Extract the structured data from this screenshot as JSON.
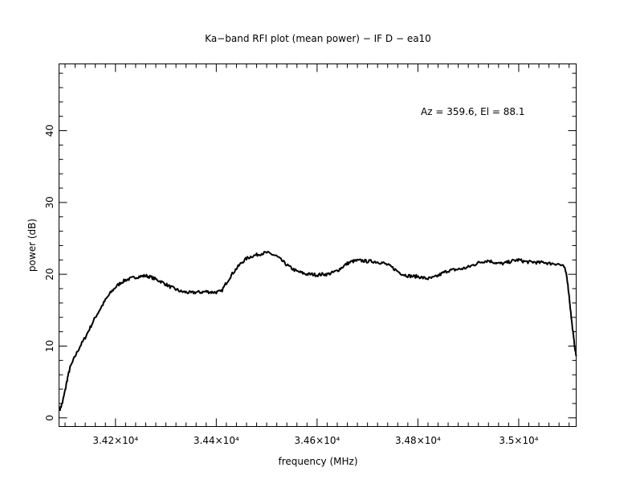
{
  "chart_data": {
    "type": "line",
    "title": "Ka−band RFI plot (mean power) − IF D − ea10",
    "xlabel": "frequency (MHz)",
    "ylabel": "power (dB)",
    "annotation": "Az = 359.6, El = 88.1",
    "xlim": [
      34088,
      35114
    ],
    "ylim": [
      -1.2,
      49.3
    ],
    "x_ticks": [
      {
        "value": 34200,
        "label": "3.42×10⁴"
      },
      {
        "value": 34400,
        "label": "3.44×10⁴"
      },
      {
        "value": 34600,
        "label": "3.46×10⁴"
      },
      {
        "value": 34800,
        "label": "3.48×10⁴"
      },
      {
        "value": 35000,
        "label": "3.5×10⁴"
      }
    ],
    "y_ticks": [
      {
        "value": 0,
        "label": "0"
      },
      {
        "value": 10,
        "label": "10"
      },
      {
        "value": 20,
        "label": "20"
      },
      {
        "value": 30,
        "label": "30"
      },
      {
        "value": 40,
        "label": "40"
      }
    ],
    "grid": false,
    "line_color": "#000000",
    "series": [
      {
        "x": [
          34090,
          34095,
          34100,
          34105,
          34110,
          34120,
          34130,
          34140,
          34150,
          34160,
          34170,
          34180,
          34190,
          34200,
          34210,
          34220,
          34230,
          34240,
          34250,
          34260,
          34270,
          34280,
          34290,
          34300,
          34310,
          34320,
          34330,
          34340,
          34350,
          34360,
          34370,
          34380,
          34390,
          34400,
          34410,
          34420,
          34430,
          34440,
          34450,
          34460,
          34470,
          34480,
          34490,
          34500,
          34510,
          34520,
          34530,
          34540,
          34550,
          34560,
          34570,
          34580,
          34590,
          34600,
          34610,
          34620,
          34630,
          34640,
          34650,
          34660,
          34670,
          34680,
          34690,
          34700,
          34710,
          34720,
          34730,
          34740,
          34750,
          34760,
          34770,
          34780,
          34790,
          34800,
          34810,
          34820,
          34830,
          34840,
          34850,
          34860,
          34870,
          34880,
          34890,
          34900,
          34910,
          34920,
          34930,
          34940,
          34950,
          34960,
          34970,
          34980,
          34990,
          35000,
          35010,
          35020,
          35030,
          35040,
          35050,
          35060,
          35070,
          35080,
          35090,
          35095,
          35100,
          35105,
          35110,
          35114
        ],
        "y": [
          1.2,
          2.2,
          3.8,
          5.6,
          7.0,
          8.6,
          10.0,
          11.2,
          12.6,
          14.0,
          15.2,
          16.4,
          17.4,
          18.2,
          18.8,
          19.2,
          19.4,
          19.6,
          19.7,
          19.8,
          19.6,
          19.3,
          19.0,
          18.6,
          18.2,
          17.9,
          17.6,
          17.5,
          17.4,
          17.5,
          17.5,
          17.6,
          17.5,
          17.5,
          17.6,
          18.8,
          19.9,
          20.8,
          21.6,
          22.2,
          22.5,
          22.7,
          22.9,
          23.0,
          22.8,
          22.5,
          21.9,
          21.3,
          20.8,
          20.4,
          20.2,
          20.0,
          20.0,
          19.9,
          20.0,
          20.0,
          20.2,
          20.5,
          21.0,
          21.5,
          21.8,
          21.9,
          21.9,
          21.8,
          21.8,
          21.7,
          21.6,
          21.3,
          20.9,
          20.4,
          20.0,
          19.8,
          19.7,
          19.7,
          19.5,
          19.4,
          19.5,
          19.8,
          20.2,
          20.5,
          20.6,
          20.7,
          20.8,
          21.0,
          21.3,
          21.6,
          21.8,
          21.9,
          21.7,
          21.5,
          21.5,
          21.7,
          21.9,
          22.0,
          21.8,
          21.7,
          21.7,
          21.6,
          21.7,
          21.5,
          21.5,
          21.4,
          21.0,
          20.0,
          17.0,
          13.5,
          10.5,
          8.6
        ]
      }
    ]
  }
}
